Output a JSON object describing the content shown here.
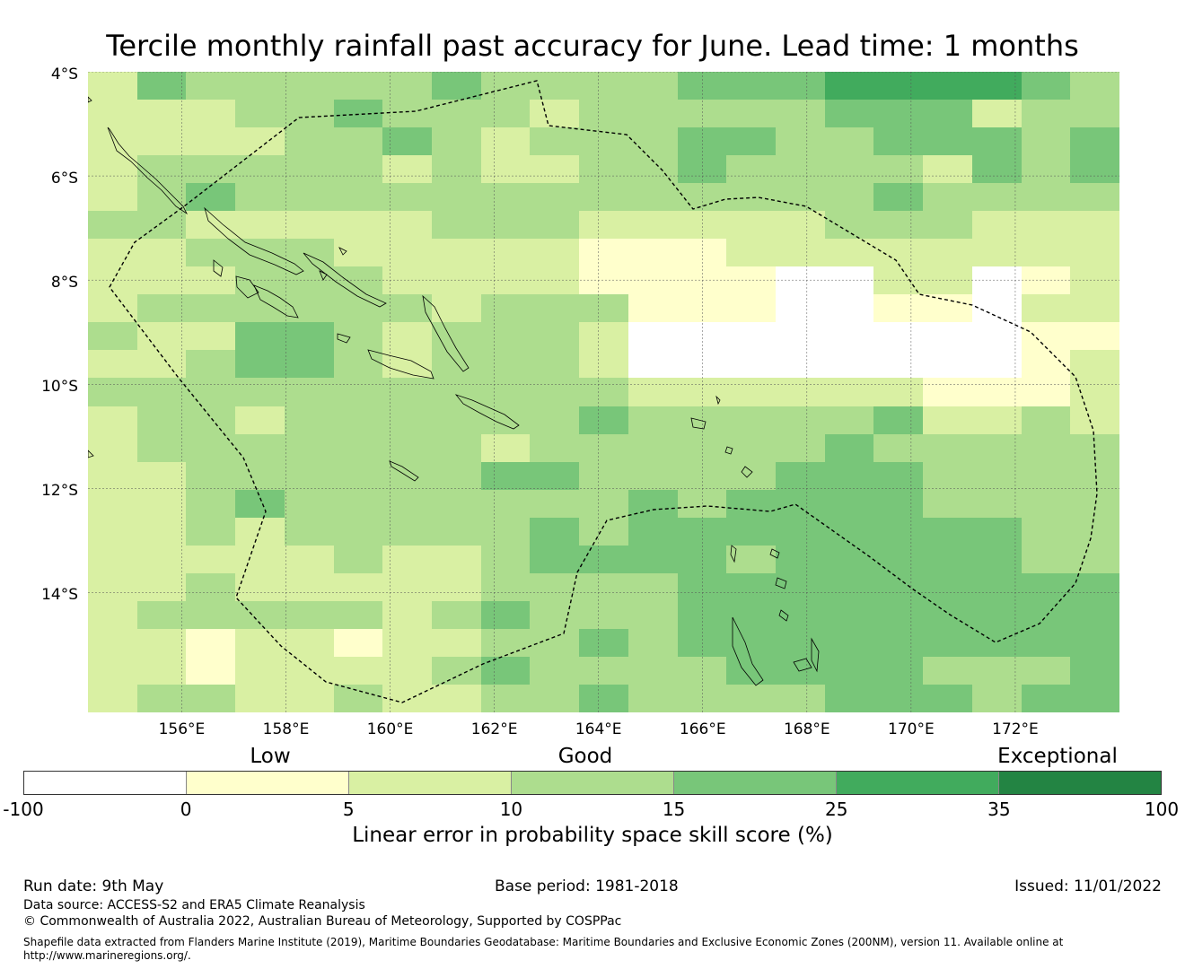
{
  "title": "Tercile monthly rainfall past accuracy for June. Lead time: 1 months",
  "map": {
    "lon_range": [
      154.2,
      174.0
    ],
    "lat_range": [
      -16.3,
      -4.0
    ],
    "lat_ticks": [
      {
        "value": -4,
        "label": "4°S"
      },
      {
        "value": -6,
        "label": "6°S"
      },
      {
        "value": -8,
        "label": "8°S"
      },
      {
        "value": -10,
        "label": "10°S"
      },
      {
        "value": -12,
        "label": "12°S"
      },
      {
        "value": -14,
        "label": "14°S"
      }
    ],
    "lon_ticks": [
      {
        "value": 156,
        "label": "156°E"
      },
      {
        "value": 158,
        "label": "158°E"
      },
      {
        "value": 160,
        "label": "160°E"
      },
      {
        "value": 162,
        "label": "162°E"
      },
      {
        "value": 164,
        "label": "164°E"
      },
      {
        "value": 166,
        "label": "166°E"
      },
      {
        "value": 168,
        "label": "168°E"
      },
      {
        "value": 170,
        "label": "170°E"
      },
      {
        "value": 172,
        "label": "172°E"
      }
    ],
    "skill_grid_rows": [
      "243333343333444555543",
      "222334333233333444233",
      "222233432333443344434",
      "233333232233433332434",
      "234333333333333343333",
      "332222233322222333222",
      "223332222211122222222",
      "222333222211110022012",
      "233333323331110011022",
      "322443233320000000011",
      "223443233320000000012",
      "333333333332222221112",
      "233233333343333342232",
      "233333332333333433333",
      "223333334433334443333",
      "223433333334344443333",
      "223233333434444444433",
      "222223223444434444433",
      "223222223333444444444",
      "233333234333444444444",
      "221221223343444444444",
      "221222234333344443334",
      "233223223343333444344"
    ]
  },
  "colorbar": {
    "categories": [
      "Low",
      "Good",
      "Exceptional"
    ],
    "boundaries": [
      "-100",
      "0",
      "5",
      "10",
      "15",
      "25",
      "35",
      "100"
    ],
    "colors": [
      "#ffffff",
      "#ffffcc",
      "#d9f0a3",
      "#addd8e",
      "#78c679",
      "#41ab5d",
      "#238443"
    ],
    "label": "Linear error in probability space skill score (%)"
  },
  "footer": {
    "run_date": "Run date: 9th May",
    "base_period": "Base period: 1981-2018",
    "issued": "Issued: 11/01/2022",
    "data_source": "Data source: ACCESS-S2 and ERA5 Climate Reanalysis",
    "copyright": "© Commonwealth of Australia 2022, Australian Bureau of Meteorology, Supported by COSPPac",
    "shapefile_1": "Shapefile data extracted from Flanders Marine Institute (2019), Maritime Boundaries Geodatabase: Maritime Boundaries and Exclusive Economic Zones (200NM), version 11. Available online at",
    "shapefile_2": "http://www.marineregions.org/."
  }
}
